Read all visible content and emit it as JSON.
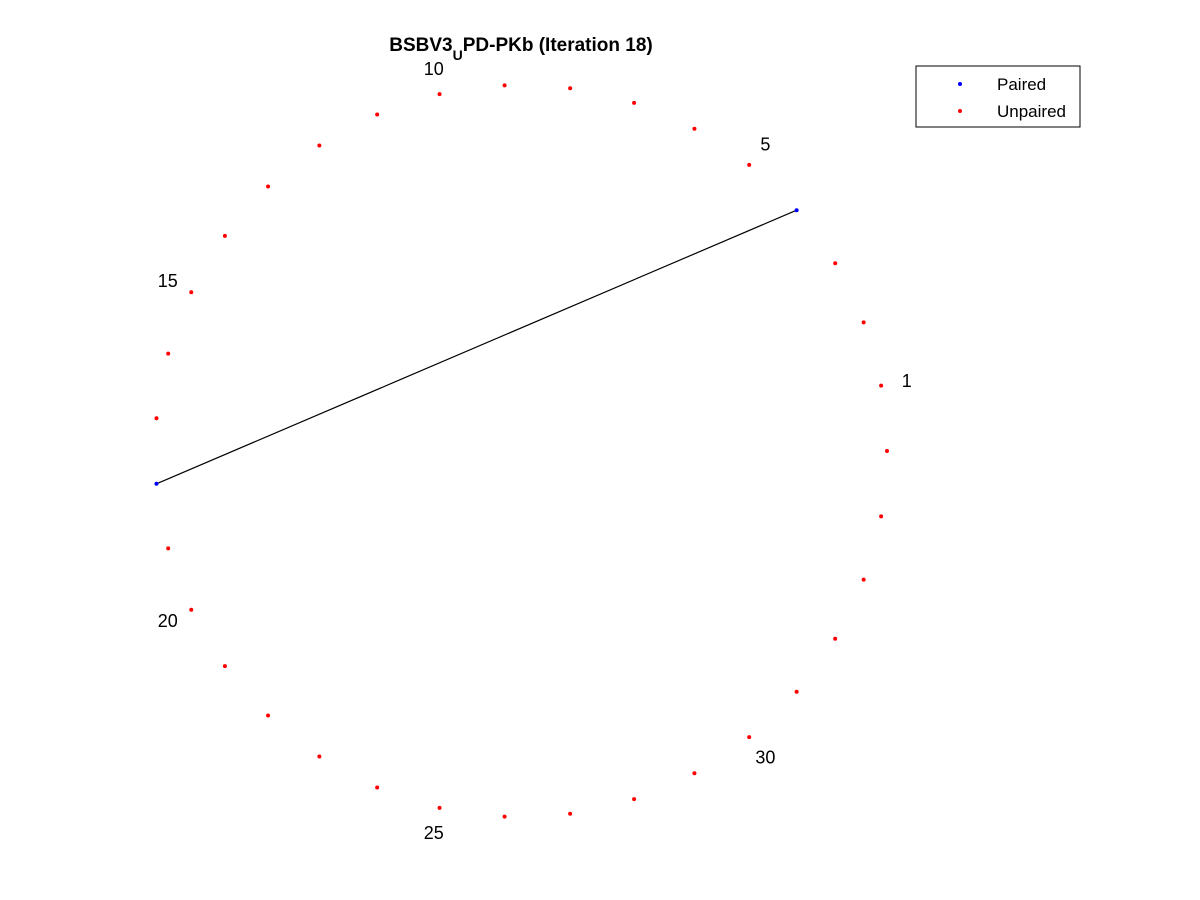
{
  "title": {
    "main": "BSBV3",
    "subscript": "U",
    "rest": "PD-PKb (Iteration 18)"
  },
  "legend": {
    "placement": "top-right",
    "entries": [
      {
        "label": "Paired",
        "color": "#0000ff"
      },
      {
        "label": "Unpaired",
        "color": "#ff0000"
      }
    ]
  },
  "chart_data": {
    "type": "arc-diagram-circular",
    "node_count": 35,
    "labeled_nodes": [
      1,
      5,
      10,
      15,
      20,
      25,
      30
    ],
    "paired_nodes": [
      4,
      18
    ],
    "pairs": [
      [
        4,
        18
      ]
    ],
    "colors": {
      "paired": "#0000ff",
      "unpaired": "#ff0000",
      "link": "#000000"
    }
  }
}
